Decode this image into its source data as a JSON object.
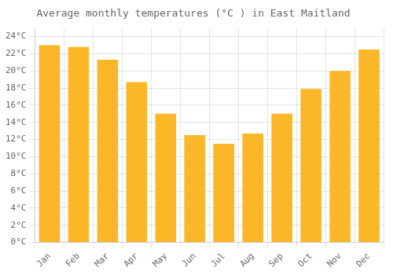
{
  "chart_data": {
    "type": "bar",
    "title": "Average monthly temperatures (°C ) in East Maitland",
    "categories": [
      "Jan",
      "Feb",
      "Mar",
      "Apr",
      "May",
      "Jun",
      "Jul",
      "Aug",
      "Sep",
      "Oct",
      "Nov",
      "Dec"
    ],
    "values": [
      23.0,
      22.8,
      21.3,
      18.7,
      15.0,
      12.5,
      11.5,
      12.7,
      15.0,
      17.9,
      20.0,
      22.5
    ],
    "color": "#FBB728",
    "ylim": [
      0,
      25
    ],
    "yticks": [
      {
        "value": 0,
        "label": "0°C"
      },
      {
        "value": 2,
        "label": "2°C"
      },
      {
        "value": 4,
        "label": "4°C"
      },
      {
        "value": 6,
        "label": "6°C"
      },
      {
        "value": 8,
        "label": "8°C"
      },
      {
        "value": 10,
        "label": "10°C"
      },
      {
        "value": 12,
        "label": "12°C"
      },
      {
        "value": 14,
        "label": "14°C"
      },
      {
        "value": 16,
        "label": "16°C"
      },
      {
        "value": 18,
        "label": "18°C"
      },
      {
        "value": 20,
        "label": "20°C"
      },
      {
        "value": 22,
        "label": "22°C"
      },
      {
        "value": 24,
        "label": "24°C"
      }
    ],
    "grid": true
  }
}
